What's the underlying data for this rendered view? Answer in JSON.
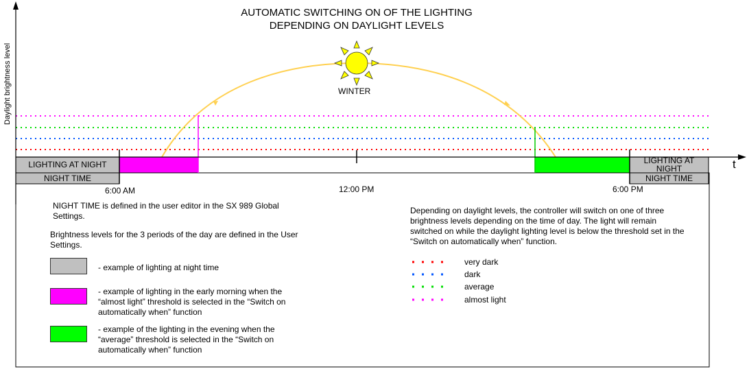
{
  "title": {
    "line1": "AUTOMATIC SWITCHING ON OF THE LIGHTING",
    "line2": "DEPENDING ON DAYLIGHT LEVELS"
  },
  "axes": {
    "y_label": "Daylight brightness level",
    "x_label": "t"
  },
  "season_label": "WINTER",
  "time_marks": {
    "morning": "6:00 AM",
    "noon": "12:00 PM",
    "evening": "6:00 PM"
  },
  "bands": {
    "left_top": "LIGHTING AT NIGHT",
    "left_bottom": "NIGHT TIME",
    "right_top_line1": "LIGHTING AT",
    "right_top_line2": "NIGHT",
    "right_bottom": "NIGHT TIME"
  },
  "notes": {
    "night_time_def": "NIGHT TIME is defined in the user editor in the SX 989 Global Settings.",
    "brightness_def": "Brightness levels for the 3 periods of the day are defined in the User Settings.",
    "right_paragraph": "Depending on daylight levels, the controller will switch on one of three brightness levels depending on the time of day. The light will remain switched on while the daylight lighting level is below the threshold set in the “Switch on automatically when” function."
  },
  "examples": [
    {
      "color": "#c0c0c0",
      "text": "- example of lighting at night time"
    },
    {
      "color": "#ff00ff",
      "text": "- example of lighting in the early morning when the “almost light” threshold is selected in the “Switch on automatically when” function"
    },
    {
      "color": "#00ff00",
      "text": "- example of the lighting in the evening when the “average” threshold is selected in the “Switch on automatically when” function"
    }
  ],
  "thresholds": [
    {
      "label": "very dark",
      "color": "#ff0000"
    },
    {
      "label": "dark",
      "color": "#0055ff"
    },
    {
      "label": "average",
      "color": "#00dd00"
    },
    {
      "label": "almost light",
      "color": "#ff00ff"
    }
  ],
  "colors": {
    "night_band": "#c0c0c0",
    "morning_band": "#ff00ff",
    "evening_band": "#00ff00",
    "sun_arc": "#ffd050",
    "sun_fill": "#ffff00"
  }
}
